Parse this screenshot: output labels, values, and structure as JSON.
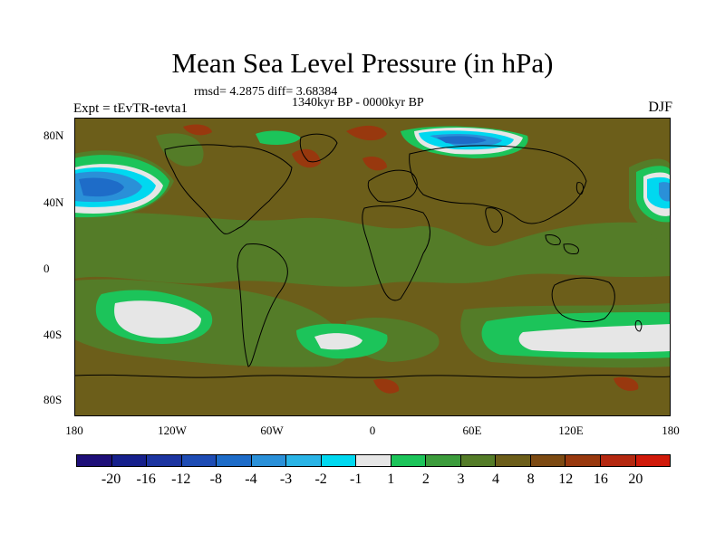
{
  "title": "Mean Sea Level Pressure (in hPa)",
  "stats": "rmsd= 4.2875 diff= 3.68384",
  "period": "1340kyr BP - 0000kyr BP",
  "experiment": "Expt = tEvTR-tevta1",
  "season": "DJF",
  "lat_labels": [
    "80N",
    "40N",
    "0",
    "40S",
    "80S"
  ],
  "lon_labels": [
    "180",
    "120W",
    "60W",
    "0",
    "60E",
    "120E",
    "180"
  ],
  "colorbar": {
    "colors": [
      "#1e0f78",
      "#16208c",
      "#1c34a0",
      "#1e4cb4",
      "#1e6cc8",
      "#2a90d8",
      "#2ab4e6",
      "#00d8f0",
      "#e6e6e6",
      "#1cc45a",
      "#3c9c3c",
      "#547c28",
      "#6c5e1a",
      "#7c4a12",
      "#98380e",
      "#b42810",
      "#d01a0a"
    ],
    "labels": [
      "-20",
      "-16",
      "-12",
      "-8",
      "-4",
      "-3",
      "-2",
      "-1",
      "1",
      "2",
      "3",
      "4",
      "8",
      "12",
      "16",
      "20"
    ]
  },
  "colors": {
    "background_field": "#6c5e1a",
    "level_4": "#547c28",
    "level_2": "#1cc45a",
    "level_1": "#e6e6e6",
    "neg_1": "#00d8f0",
    "neg_3": "#2a90d8",
    "neg_4": "#1e6cc8",
    "pos_12": "#98380e",
    "coastline": "#000000"
  }
}
